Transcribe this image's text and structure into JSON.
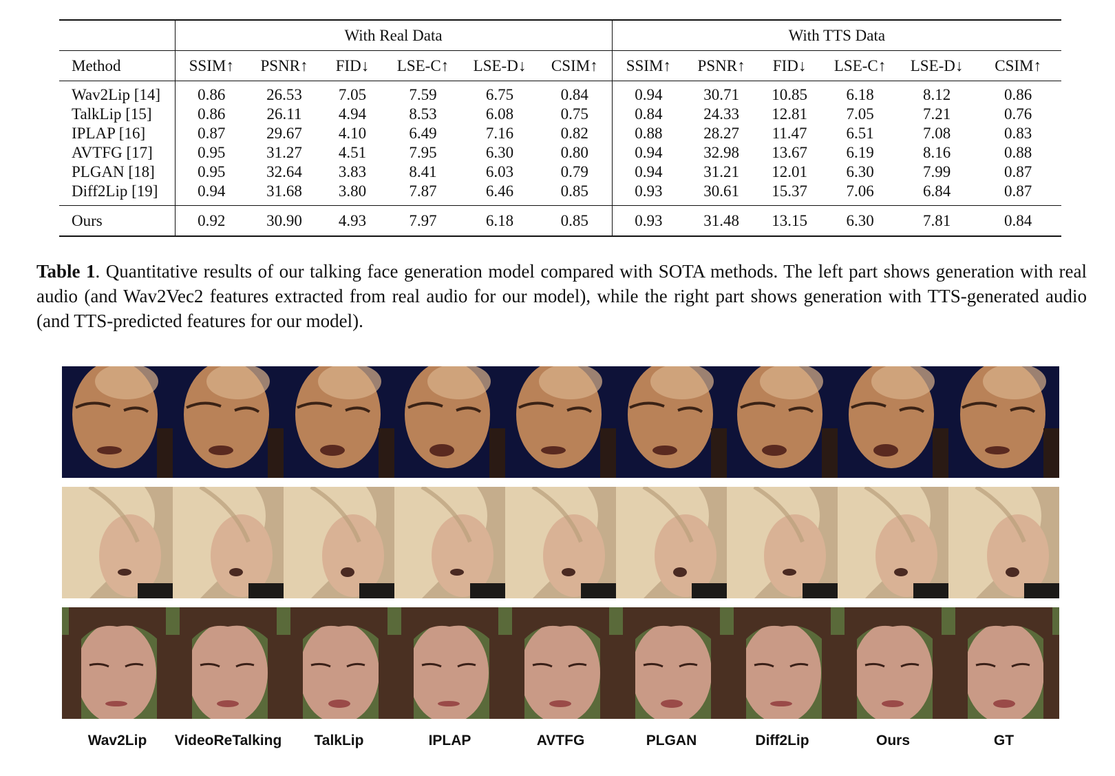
{
  "table": {
    "groups": {
      "real": "With Real Data",
      "tts": "With TTS Data"
    },
    "method_header": "Method",
    "metric_headers": [
      "SSIM↑",
      "PSNR↑",
      "FID↓",
      "LSE-C↑",
      "LSE-D↓",
      "CSIM↑",
      "SSIM↑",
      "PSNR↑",
      "FID↓",
      "LSE-C↑",
      "LSE-D↓",
      "CSIM↑"
    ],
    "rows": [
      {
        "method": "Wav2Lip [14]",
        "values": [
          "0.86",
          "26.53",
          "7.05",
          "7.59",
          "6.75",
          "0.84",
          "0.94",
          "30.71",
          "10.85",
          "6.18",
          "8.12",
          "0.86"
        ]
      },
      {
        "method": "TalkLip [15]",
        "values": [
          "0.86",
          "26.11",
          "4.94",
          "8.53",
          "6.08",
          "0.75",
          "0.84",
          "24.33",
          "12.81",
          "7.05",
          "7.21",
          "0.76"
        ]
      },
      {
        "method": "IPLAP [16]",
        "values": [
          "0.87",
          "29.67",
          "4.10",
          "6.49",
          "7.16",
          "0.82",
          "0.88",
          "28.27",
          "11.47",
          "6.51",
          "7.08",
          "0.83"
        ]
      },
      {
        "method": "AVTFG [17]",
        "values": [
          "0.95",
          "31.27",
          "4.51",
          "7.95",
          "6.30",
          "0.80",
          "0.94",
          "32.98",
          "13.67",
          "6.19",
          "8.16",
          "0.88"
        ]
      },
      {
        "method": "PLGAN [18]",
        "values": [
          "0.95",
          "32.64",
          "3.83",
          "8.41",
          "6.03",
          "0.79",
          "0.94",
          "31.21",
          "12.01",
          "6.30",
          "7.99",
          "0.87"
        ]
      },
      {
        "method": "Diff2Lip [19]",
        "values": [
          "0.94",
          "31.68",
          "3.80",
          "7.87",
          "6.46",
          "0.85",
          "0.93",
          "30.61",
          "15.37",
          "7.06",
          "6.84",
          "0.87"
        ]
      }
    ],
    "ours": {
      "method": "Ours",
      "values": [
        "0.92",
        "30.90",
        "4.93",
        "7.97",
        "6.18",
        "0.85",
        "0.93",
        "31.48",
        "13.15",
        "6.30",
        "7.81",
        "0.84"
      ]
    }
  },
  "caption": {
    "label": "Table 1",
    "text": ". Quantitative results of our talking face generation model compared with SOTA methods. The left part shows generation with real audio (and Wav2Vec2 features extracted from real audio for our model), while the right part shows generation with TTS-generated audio (and TTS-predicted features for our model)."
  },
  "figure": {
    "column_labels": [
      "Wav2Lip",
      "VideoReTalking",
      "TalkLip",
      "IPLAP",
      "AVTFG",
      "PLGAN",
      "Diff2Lip",
      "Ours",
      "GT"
    ],
    "rows": [
      {
        "subject": "bald-man",
        "skin": "#b98258",
        "background": "#0e1238",
        "hair": "#d8b08a"
      },
      {
        "subject": "blonde-woman",
        "skin": "#d9b295",
        "background": "#c5ad8c",
        "hair": "#e3d0ae"
      },
      {
        "subject": "brunette-woman",
        "skin": "#c99a86",
        "background": "#5a6a3a",
        "hair": "#4a3022"
      }
    ]
  }
}
